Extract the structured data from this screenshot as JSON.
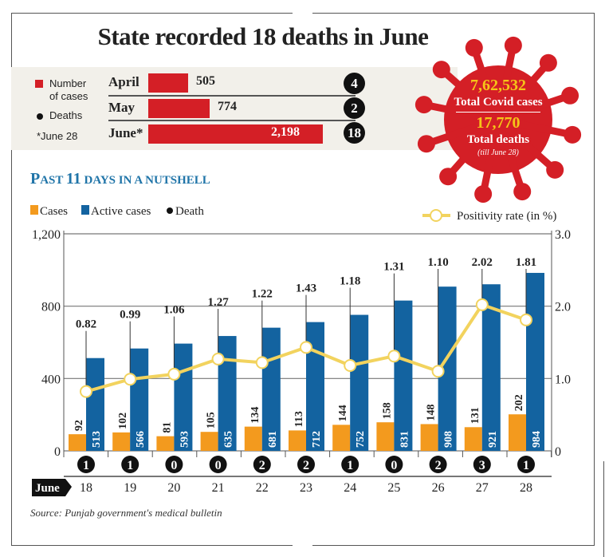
{
  "title": "State recorded 18 deaths in June",
  "monthly": {
    "legend": {
      "cases": "Number of cases",
      "cases_line1": "Number",
      "cases_line2": "of cases",
      "deaths": "Deaths",
      "note": "*June 28"
    },
    "rows": [
      {
        "month": "April",
        "cases": 505,
        "cases_label": "505",
        "deaths": "4"
      },
      {
        "month": "May",
        "cases": 774,
        "cases_label": "774",
        "deaths": "2"
      },
      {
        "month": "June*",
        "cases": 2198,
        "cases_label": "2,198",
        "deaths": "18"
      }
    ]
  },
  "totals": {
    "cases_value": "7,62,532",
    "cases_label": "Total Covid cases",
    "deaths_value": "17,770",
    "deaths_label": "Total deaths",
    "deaths_note": "(till June 28)"
  },
  "subtitle": {
    "big1": "P",
    "small1": "AST ",
    "big2": "11",
    "small2": " DAYS IN A NUTSHELL"
  },
  "chart_data": {
    "type": "bar",
    "title": "Past 11 days in a nutshell",
    "x_prefix": "June",
    "categories": [
      "18",
      "19",
      "20",
      "21",
      "22",
      "23",
      "24",
      "25",
      "26",
      "27",
      "28"
    ],
    "series": [
      {
        "name": "Cases",
        "color": "#f39a1e",
        "values": [
          92,
          102,
          81,
          105,
          134,
          113,
          144,
          158,
          148,
          131,
          202
        ]
      },
      {
        "name": "Active cases",
        "color": "#1363a0",
        "values": [
          513,
          566,
          593,
          635,
          681,
          712,
          752,
          831,
          908,
          921,
          984
        ]
      },
      {
        "name": "Positivity rate (in %)",
        "type": "line",
        "axis": "right",
        "color": "#f2d35e",
        "values": [
          0.82,
          0.99,
          1.06,
          1.27,
          1.22,
          1.43,
          1.18,
          1.31,
          1.1,
          2.02,
          1.81
        ],
        "labels": [
          "0.82",
          "0.99",
          "1.06",
          "1.27",
          "1.22",
          "1.43",
          "1.18",
          "1.31",
          "1.10",
          "2.02",
          "1.81"
        ]
      },
      {
        "name": "Death",
        "type": "marker",
        "values": [
          1,
          1,
          0,
          0,
          2,
          2,
          1,
          0,
          2,
          3,
          1
        ]
      }
    ],
    "legend": {
      "cases": "Cases",
      "active": "Active cases",
      "death": "Death",
      "positivity": "Positivity rate (in %)"
    },
    "y_left": {
      "ylim": [
        0,
        1200
      ],
      "ticks": [
        0,
        400,
        800,
        1200
      ],
      "tick_labels": [
        "0",
        "400",
        "800",
        "1,200"
      ]
    },
    "y_right": {
      "ylim": [
        0,
        3
      ],
      "ticks": [
        0,
        1,
        2,
        3
      ],
      "tick_labels": [
        "0",
        "1.0",
        "2.0",
        "3.0"
      ]
    },
    "grid": true,
    "legend_position": "top"
  },
  "source": "Source: Punjab government's medical bulletin"
}
